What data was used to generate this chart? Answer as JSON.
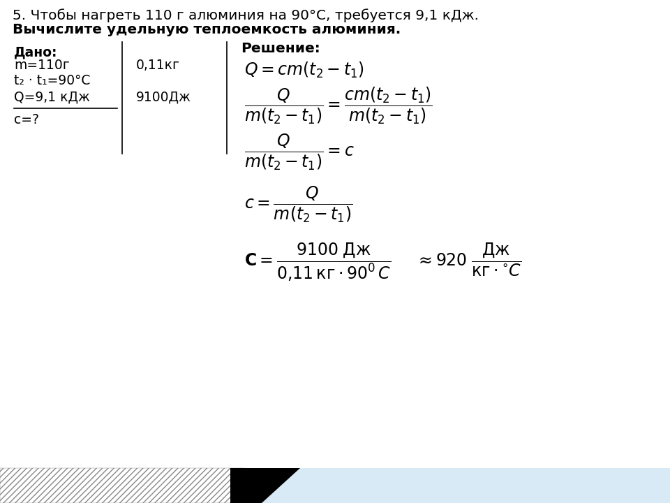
{
  "background_color": "#ffffff",
  "title_line1": "5. Чтобы нагреть 110 г алюминия на 90°С, требуется 9,1 кДж.",
  "title_line2": "Вычислите удельную теплоемкость алюминия.",
  "dado_label": "Дано:",
  "dado_lines": [
    "m=110г",
    "t₂ · t₁=90°С",
    "Q=9,1 кДж"
  ],
  "convert_lines": [
    "0,11кг",
    "",
    "9100Дж"
  ],
  "find_label": "c=?",
  "solution_label": "Решение:",
  "formula1": "$Q = cm(t_2 - t_1)$",
  "formula2_left": "$\\frac{Q}{m(t_2 - t_1)}$",
  "formula2_right": "$\\frac{cm(t_2 - t_1)}{m(t_2 - t_1)}$",
  "formula3_left": "$\\frac{Q}{m(t_2 - t_1)}$",
  "formula3_right": "$= c$",
  "formula4": "$c = \\frac{Q}{m(t_2 - t_1)}$",
  "formula5_left": "$\\mathbf{C} = \\frac{9100\\;\\mathregular{Дж}}{0{,}11\\;\\mathregular{кг}\\cdot 90^0\\,C}$",
  "formula5_approx": "$\\approx 920$",
  "formula5_right": "$\\frac{\\mathregular{Дж}}{\\mathregular{кг}\\cdot{}^\\circ C}$",
  "fig_width": 9.6,
  "fig_height": 7.2,
  "dpi": 100
}
